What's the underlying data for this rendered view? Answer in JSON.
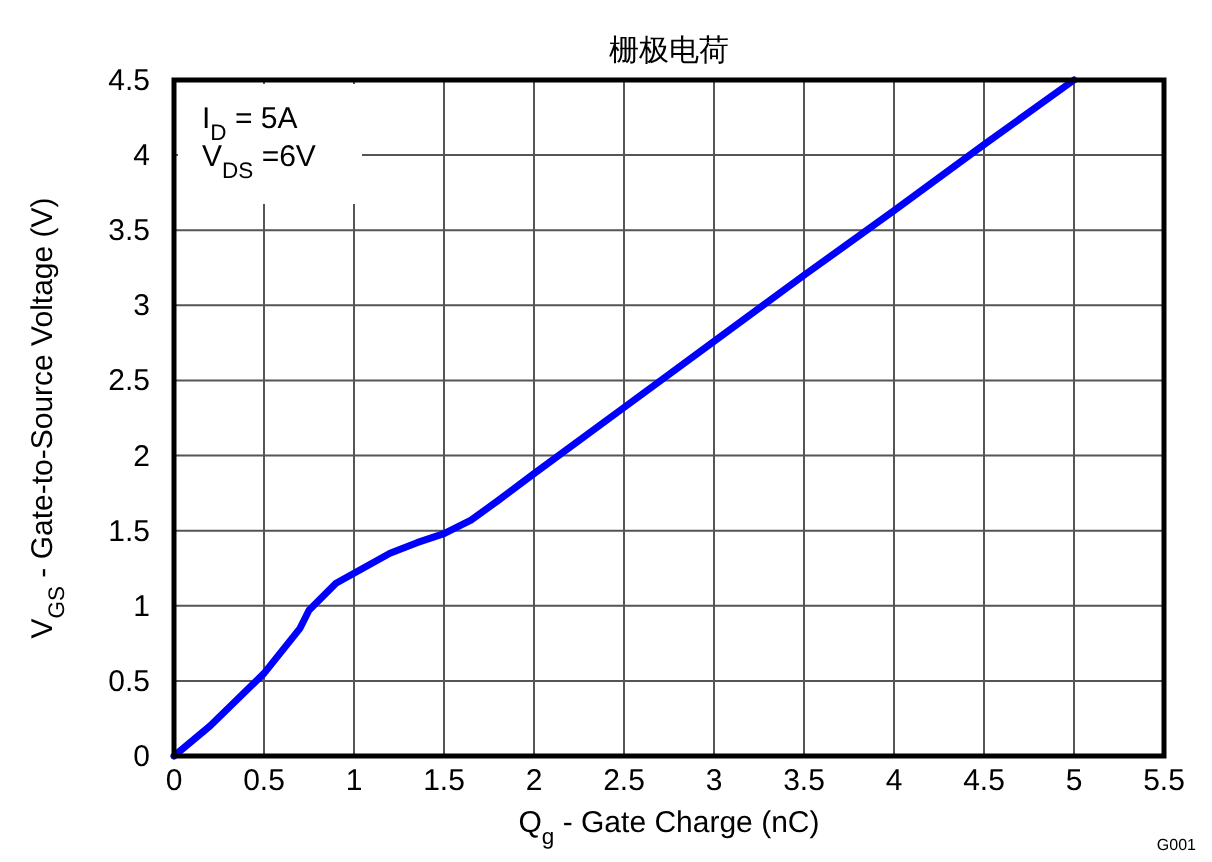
{
  "chart_data": {
    "type": "line",
    "title": "栅极电荷",
    "xlabel": "Q$_{g}$ - Gate Charge  (nC)",
    "ylabel": "V$_{GS}$ - Gate-to-Source Voltage (V)",
    "x": [
      0,
      0.2,
      0.5,
      0.7,
      0.75,
      0.9,
      1.05,
      1.2,
      1.35,
      1.5,
      1.65,
      1.8,
      2,
      2.5,
      3,
      3.5,
      4,
      4.5,
      5
    ],
    "series": [
      {
        "color": "#0000ff",
        "values": [
          0,
          0.2,
          0.55,
          0.85,
          0.97,
          1.15,
          1.25,
          1.35,
          1.42,
          1.48,
          1.57,
          1.7,
          1.88,
          2.32,
          2.76,
          3.2,
          3.63,
          4.07,
          4.5
        ]
      }
    ],
    "xlim": [
      0,
      5.5
    ],
    "xticks": [
      0,
      0.5,
      1,
      1.5,
      2,
      2.5,
      3,
      3.5,
      4,
      4.5,
      5,
      5.5
    ],
    "ylim": [
      0,
      4.5
    ],
    "yticks": [
      0,
      0.5,
      1,
      1.5,
      2,
      2.5,
      3,
      3.5,
      4,
      4.5
    ],
    "grid": true,
    "marker": "none",
    "line_style": "solid",
    "annotations": [
      "I$_{D}$ = 5A",
      "V$_{DS}$ =6V",
      "G001"
    ]
  }
}
